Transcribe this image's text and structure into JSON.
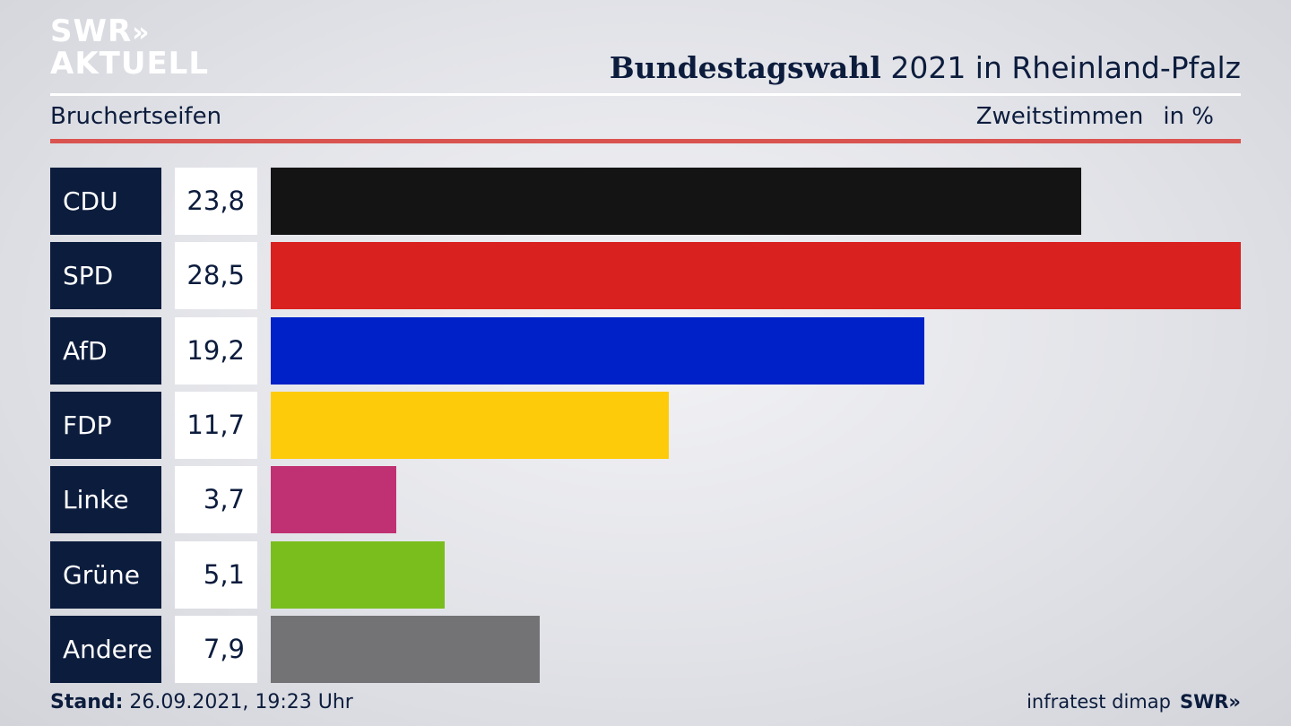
{
  "logo": {
    "line1": "SWR",
    "chevrons": "»",
    "line2": "AKTUELL"
  },
  "title": {
    "bold": "Bundestagswahl",
    "rest": " 2021 in Rheinland-Pfalz"
  },
  "subtitle": {
    "left": "Bruchertseifen",
    "right": "Zweitstimmen",
    "unit": "in %"
  },
  "footer": {
    "stand_label": "Stand:",
    "stand_value": " 26.09.2021, 19:23 Uhr",
    "source": "infratest dimap",
    "brand": "SWR»"
  },
  "colors": {
    "navy": "#0c1c3d",
    "red_rule": "#d9534f"
  },
  "chart_data": {
    "type": "bar",
    "orientation": "horizontal",
    "categories": [
      "CDU",
      "SPD",
      "AfD",
      "FDP",
      "Linke",
      "Grüne",
      "Andere"
    ],
    "values": [
      23.8,
      28.5,
      19.2,
      11.7,
      3.7,
      5.1,
      7.9
    ],
    "value_labels": [
      "23,8",
      "28,5",
      "19,2",
      "11,7",
      "3,7",
      "5,1",
      "7,9"
    ],
    "colors": [
      "#141414",
      "#d92120",
      "#0021c8",
      "#fecb0a",
      "#c03173",
      "#7abe1e",
      "#737375"
    ],
    "xlim": [
      0,
      28.5
    ],
    "grid": false,
    "legend": "none"
  }
}
